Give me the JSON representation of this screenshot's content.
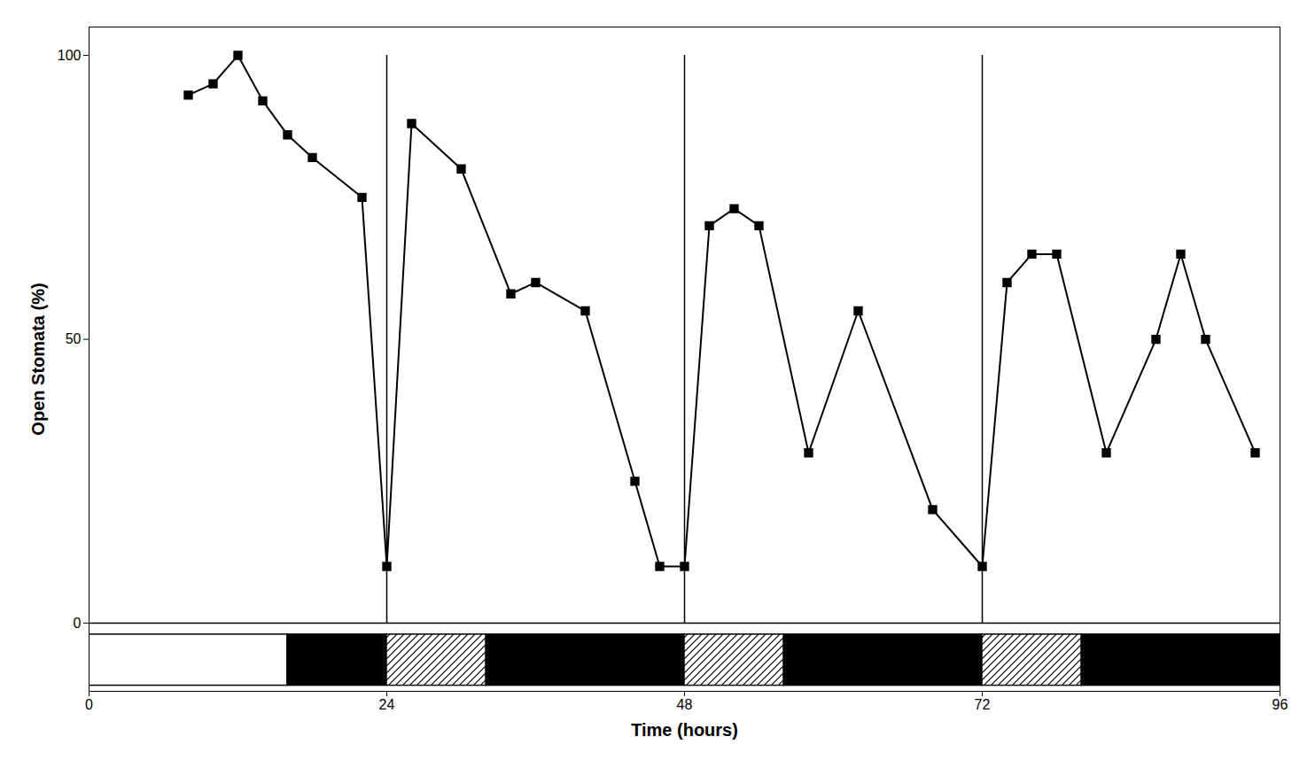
{
  "chart_data": {
    "type": "line",
    "xlabel": "Time (hours)",
    "ylabel": "Open Stomata (%)",
    "x": [
      8,
      10,
      12,
      14,
      16,
      18,
      22,
      24,
      26,
      30,
      34,
      36,
      40,
      44,
      46,
      48,
      50,
      52,
      54,
      58,
      62,
      68,
      72,
      74,
      76,
      78,
      82,
      86,
      88,
      90,
      94
    ],
    "values": [
      93,
      95,
      100,
      92,
      86,
      82,
      75,
      10,
      88,
      80,
      58,
      60,
      55,
      25,
      10,
      10,
      70,
      73,
      70,
      30,
      55,
      20,
      10,
      60,
      65,
      65,
      30,
      50,
      65,
      50,
      30
    ],
    "color": "#000000",
    "marker": "square",
    "line_style": "solid",
    "xlim": [
      0,
      96
    ],
    "ylim": [
      -12,
      105
    ],
    "xticks": [
      0,
      24,
      48,
      72,
      96
    ],
    "yticks": [
      0,
      50,
      100
    ],
    "grid": false,
    "vertical_lines": [
      24,
      48,
      72
    ],
    "vertical_line_range": [
      0,
      100
    ],
    "hline": 0,
    "bar_y_bottom": -11,
    "bar_y_top": -2,
    "bar_segments": [
      {
        "start": 0,
        "end": 16,
        "type": "white"
      },
      {
        "start": 16,
        "end": 24,
        "type": "black"
      },
      {
        "start": 24,
        "end": 32,
        "type": "hatch"
      },
      {
        "start": 32,
        "end": 48,
        "type": "black"
      },
      {
        "start": 48,
        "end": 56,
        "type": "hatch"
      },
      {
        "start": 56,
        "end": 72,
        "type": "black"
      },
      {
        "start": 72,
        "end": 80,
        "type": "hatch"
      },
      {
        "start": 80,
        "end": 96,
        "type": "black"
      }
    ]
  }
}
